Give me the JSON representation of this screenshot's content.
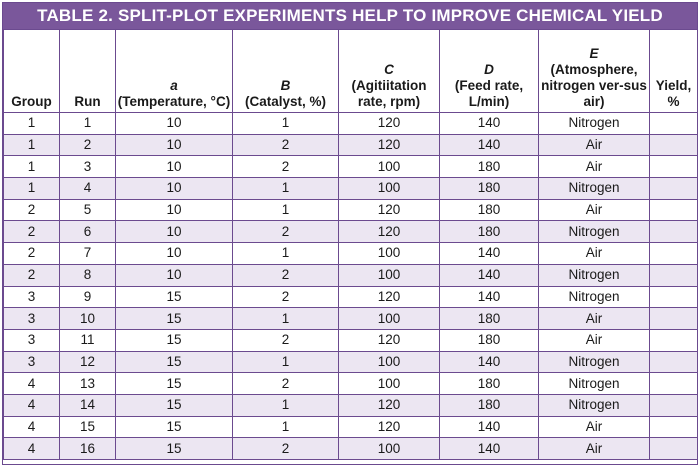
{
  "title": "TABLE 2. SPLIT-PLOT EXPERIMENTS HELP TO IMPROVE CHEMICAL YIELD",
  "headers": [
    {
      "key": "group",
      "symbol": "",
      "label": "Group"
    },
    {
      "key": "run",
      "symbol": "",
      "label": "Run"
    },
    {
      "key": "a",
      "symbol": "a",
      "label": "(Temperature, °C)"
    },
    {
      "key": "b",
      "symbol": "B",
      "label": "(Catalyst, %)"
    },
    {
      "key": "c",
      "symbol": "C",
      "label": "(Agitiitation rate, rpm)"
    },
    {
      "key": "d",
      "symbol": "D",
      "label": "(Feed rate, L/min)"
    },
    {
      "key": "e",
      "symbol": "E",
      "label": "(Atmosphere, nitrogen ver-sus air)"
    },
    {
      "key": "yield",
      "symbol": "",
      "label": "Yield, %"
    }
  ],
  "rows": [
    {
      "group": "1",
      "run": "1",
      "a": "10",
      "b": "1",
      "c": "120",
      "d": "140",
      "e": "Nitrogen",
      "yield": ""
    },
    {
      "group": "1",
      "run": "2",
      "a": "10",
      "b": "2",
      "c": "120",
      "d": "140",
      "e": "Air",
      "yield": ""
    },
    {
      "group": "1",
      "run": "3",
      "a": "10",
      "b": "2",
      "c": "100",
      "d": "180",
      "e": "Air",
      "yield": ""
    },
    {
      "group": "1",
      "run": "4",
      "a": "10",
      "b": "1",
      "c": "100",
      "d": "180",
      "e": "Nitrogen",
      "yield": ""
    },
    {
      "group": "2",
      "run": "5",
      "a": "10",
      "b": "1",
      "c": "120",
      "d": "180",
      "e": "Air",
      "yield": ""
    },
    {
      "group": "2",
      "run": "6",
      "a": "10",
      "b": "2",
      "c": "120",
      "d": "180",
      "e": "Nitrogen",
      "yield": ""
    },
    {
      "group": "2",
      "run": "7",
      "a": "10",
      "b": "1",
      "c": "100",
      "d": "140",
      "e": "Air",
      "yield": ""
    },
    {
      "group": "2",
      "run": "8",
      "a": "10",
      "b": "2",
      "c": "100",
      "d": "140",
      "e": "Nitrogen",
      "yield": ""
    },
    {
      "group": "3",
      "run": "9",
      "a": "15",
      "b": "2",
      "c": "120",
      "d": "140",
      "e": "Nitrogen",
      "yield": ""
    },
    {
      "group": "3",
      "run": "10",
      "a": "15",
      "b": "1",
      "c": "100",
      "d": "180",
      "e": "Air",
      "yield": ""
    },
    {
      "group": "3",
      "run": "11",
      "a": "15",
      "b": "2",
      "c": "120",
      "d": "180",
      "e": "Air",
      "yield": ""
    },
    {
      "group": "3",
      "run": "12",
      "a": "15",
      "b": "1",
      "c": "100",
      "d": "140",
      "e": "Nitrogen",
      "yield": ""
    },
    {
      "group": "4",
      "run": "13",
      "a": "15",
      "b": "2",
      "c": "100",
      "d": "180",
      "e": "Nitrogen",
      "yield": ""
    },
    {
      "group": "4",
      "run": "14",
      "a": "15",
      "b": "1",
      "c": "120",
      "d": "180",
      "e": "Nitrogen",
      "yield": ""
    },
    {
      "group": "4",
      "run": "15",
      "a": "15",
      "b": "1",
      "c": "120",
      "d": "140",
      "e": "Air",
      "yield": ""
    },
    {
      "group": "4",
      "run": "16",
      "a": "15",
      "b": "2",
      "c": "100",
      "d": "140",
      "e": "Air",
      "yield": ""
    }
  ],
  "colors": {
    "title_bg": "#7a579b",
    "title_text": "#ffffff",
    "border": "#6b4a8f",
    "stripe": "#ece6f2"
  }
}
